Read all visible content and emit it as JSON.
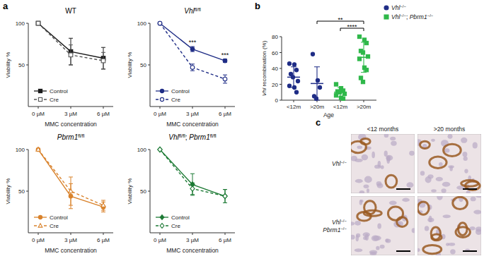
{
  "panel_labels": [
    "a",
    "b",
    "c"
  ],
  "chart_data": [
    {
      "type": "line",
      "title": "WT",
      "categories": [
        "0 µM",
        "3 µM",
        "6 µM"
      ],
      "x_label": "MMC concentration",
      "y_label": "Viability %",
      "ylim": [
        0,
        100
      ],
      "yticks": [
        50,
        100
      ],
      "legend": "lower left",
      "series": [
        {
          "name": "Control",
          "color": "#1a1a1a",
          "marker": "square",
          "line_style": "solid",
          "values": [
            100,
            66,
            58
          ],
          "errors": [
            0,
            16,
            13
          ]
        },
        {
          "name": "Cre",
          "color": "#555555",
          "marker": "square-open",
          "line_style": "dashed",
          "values": [
            100,
            62,
            55
          ],
          "errors": [
            0,
            12,
            10
          ]
        }
      ]
    },
    {
      "type": "line",
      "title": [
        {
          "text": "Vhl",
          "italic": true
        },
        {
          "text": "fl/fl",
          "sup": true
        }
      ],
      "categories": [
        "0 µM",
        "3 µM",
        "6 µM"
      ],
      "x_label": "MMC concentration",
      "y_label": "Viability %",
      "ylim": [
        0,
        100
      ],
      "yticks": [
        50,
        100
      ],
      "legend": "lower left",
      "series": [
        {
          "name": "Control",
          "color": "#1f2d86",
          "marker": "circle",
          "line_style": "solid",
          "values": [
            100,
            69,
            55
          ],
          "errors": [
            0,
            3,
            2
          ]
        },
        {
          "name": "Cre",
          "color": "#1f2d86",
          "marker": "circle-open",
          "line_style": "dashed",
          "values": [
            100,
            47,
            33
          ],
          "errors": [
            0,
            4,
            5
          ]
        }
      ],
      "annotations": [
        {
          "text": "***",
          "category": 1
        },
        {
          "text": "***",
          "category": 2
        }
      ]
    },
    {
      "type": "line",
      "title": [
        {
          "text": "Pbrm1",
          "italic": true
        },
        {
          "text": "fl/fl",
          "sup": true
        }
      ],
      "categories": [
        "0 µM",
        "3 µM",
        "6 µM"
      ],
      "x_label": "MMC concentration",
      "y_label": "Viability %",
      "ylim": [
        0,
        100
      ],
      "yticks": [
        50,
        100
      ],
      "legend": "lower left",
      "series": [
        {
          "name": "Control",
          "color": "#d9822b",
          "marker": "circle",
          "line_style": "solid",
          "values": [
            100,
            44,
            31
          ],
          "errors": [
            0,
            15,
            6
          ]
        },
        {
          "name": "Cre",
          "color": "#d9822b",
          "marker": "triangle-open",
          "line_style": "dashed",
          "values": [
            100,
            50,
            33
          ],
          "errors": [
            0,
            17,
            6
          ]
        }
      ]
    },
    {
      "type": "line",
      "title": [
        {
          "text": "Vhl",
          "italic": true
        },
        {
          "text": "fl/fl",
          "sup": true
        },
        {
          "text": "; "
        },
        {
          "text": "Pbrm1",
          "italic": true
        },
        {
          "text": "fl/fl",
          "sup": true
        }
      ],
      "categories": [
        "0 µM",
        "3 µM",
        "6 µM"
      ],
      "x_label": "MMC concentration",
      "y_label": "Viability %",
      "ylim": [
        0,
        100
      ],
      "yticks": [
        50,
        100
      ],
      "legend": "lower left",
      "series": [
        {
          "name": "Control",
          "color": "#1d7a35",
          "marker": "diamond",
          "line_style": "solid",
          "values": [
            100,
            58,
            44
          ],
          "errors": [
            0,
            13,
            8
          ]
        },
        {
          "name": "Cre",
          "color": "#1d7a35",
          "marker": "diamond-open",
          "line_style": "dashed",
          "values": [
            100,
            53,
            44
          ],
          "errors": [
            0,
            7,
            8
          ]
        }
      ]
    },
    {
      "type": "scatter",
      "categories": [
        "<12m",
        ">20m",
        "<12m",
        ">20m"
      ],
      "x_label": "Age",
      "y_label": [
        {
          "text": "Vhl",
          "italic": true
        },
        {
          "text": " recombination (%)"
        }
      ],
      "ylim": [
        0,
        80
      ],
      "yticks": [
        0,
        20,
        40,
        60,
        80
      ],
      "legend": "upper right",
      "series": [
        {
          "name": [
            {
              "text": "Vhl",
              "italic": true
            },
            {
              "text": "−/−",
              "sup": true
            }
          ],
          "color": "#1f2d86",
          "marker": "circle",
          "values": [
            [
              46,
              45,
              38,
              33,
              29,
              24,
              18,
              16,
              10
            ],
            [
              58,
              25,
              16,
              5,
              2
            ],
            null,
            null
          ],
          "mean": [
            29,
            21,
            null,
            null
          ],
          "sd": [
            13,
            21,
            null,
            null
          ]
        },
        {
          "name": [
            {
              "text": "Vhl",
              "italic": true
            },
            {
              "text": "−/−",
              "sup": true
            },
            {
              "text": "; "
            },
            {
              "text": "Pbrm1",
              "italic": true
            },
            {
              "text": "−/−",
              "sup": true
            }
          ],
          "color": "#2fb84a",
          "marker": "square",
          "values": [
            null,
            null,
            [
              20,
              15,
              12,
              11,
              10,
              8,
              6,
              3,
              2
            ],
            [
              80,
              76,
              72,
              62,
              60,
              55,
              52,
              41,
              38,
              28,
              23
            ]
          ],
          "mean": [
            null,
            null,
            10,
            54
          ],
          "sd": [
            null,
            null,
            6,
            19
          ]
        }
      ],
      "annotations": [
        {
          "text": "**",
          "from": 1,
          "to": 3
        },
        {
          "text": "****",
          "from": 2,
          "to": 3
        }
      ]
    }
  ],
  "panel_c": {
    "columns": [
      "<12 months",
      ">20 months"
    ],
    "rows": [
      [
        [
          {
            "text": "Vhl",
            "italic": true
          },
          {
            "text": "−/−",
            "sup": true
          }
        ]
      ],
      [
        [
          {
            "text": "Vhl",
            "italic": true
          },
          {
            "text": "−/−",
            "sup": true
          }
        ],
        [
          {
            "text": "Pbrm1",
            "italic": true
          },
          {
            "text": "−/−",
            "sup": true
          }
        ]
      ]
    ]
  }
}
